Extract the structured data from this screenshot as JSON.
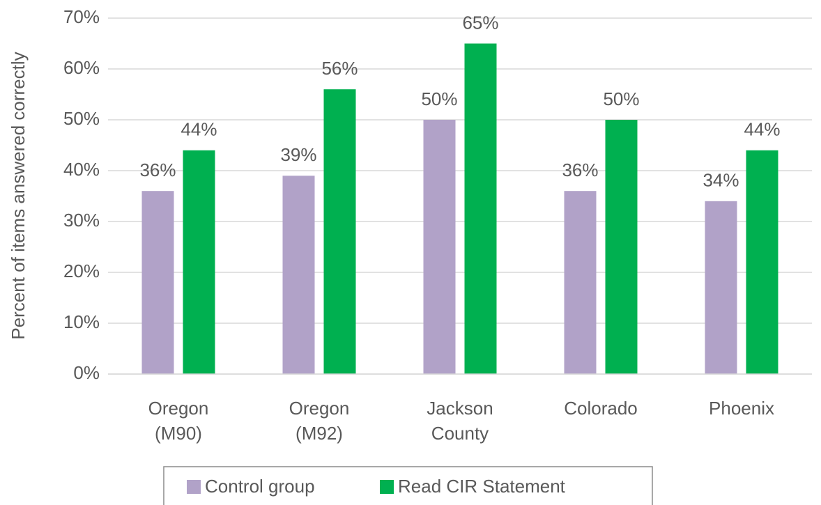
{
  "chart_data": {
    "type": "bar",
    "y_label": "Percent of items answered correctly",
    "categories": [
      "Oregon (M90)",
      "Oregon (M92)",
      "Jackson County",
      "Colorado",
      "Phoenix"
    ],
    "series": [
      {
        "name": "Control group",
        "color": "#b1a2c8",
        "values": [
          36,
          39,
          50,
          36,
          34
        ],
        "value_labels": [
          "36%",
          "39%",
          "50%",
          "36%",
          "34%"
        ]
      },
      {
        "name": "Read CIR Statement",
        "color": "#00b050",
        "values": [
          44,
          56,
          65,
          50,
          44
        ],
        "value_labels": [
          "44%",
          "56%",
          "65%",
          "50%",
          "44%"
        ]
      }
    ],
    "ylim": [
      0,
      70
    ],
    "yticks": [
      {
        "value": 0,
        "label": "0%"
      },
      {
        "value": 10,
        "label": "10%"
      },
      {
        "value": 20,
        "label": "20%"
      },
      {
        "value": 30,
        "label": "30%"
      },
      {
        "value": 40,
        "label": "40%"
      },
      {
        "value": 50,
        "label": "50%"
      },
      {
        "value": 60,
        "label": "60%"
      },
      {
        "value": 70,
        "label": "70%"
      }
    ],
    "grid": true,
    "legend": "bottom"
  }
}
